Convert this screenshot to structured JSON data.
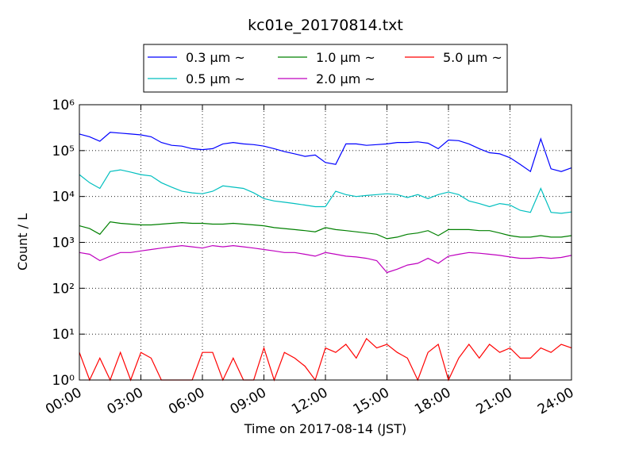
{
  "chart_data": {
    "type": "line",
    "title": "kc01e_20170814.txt",
    "x_label": "Time on 2017-08-14 (JST)",
    "y_label": "Count / L",
    "log_y": true,
    "grid": true,
    "x": [
      0,
      0.5,
      1,
      1.5,
      2,
      2.5,
      3,
      3.5,
      4,
      4.5,
      5,
      5.5,
      6,
      6.5,
      7,
      7.5,
      8,
      8.5,
      9,
      9.5,
      10,
      10.5,
      11,
      11.5,
      12,
      12.5,
      13,
      13.5,
      14,
      14.5,
      15,
      15.5,
      16,
      16.5,
      17,
      17.5,
      18,
      18.5,
      19,
      19.5,
      20,
      20.5,
      21,
      21.5,
      22,
      22.5,
      23,
      23.5,
      24
    ],
    "xlim": [
      0,
      24
    ],
    "xticks": [
      {
        "value": 0,
        "label": "00:00"
      },
      {
        "value": 3,
        "label": "03:00"
      },
      {
        "value": 6,
        "label": "06:00"
      },
      {
        "value": 9,
        "label": "09:00"
      },
      {
        "value": 12,
        "label": "12:00"
      },
      {
        "value": 15,
        "label": "15:00"
      },
      {
        "value": 18,
        "label": "18:00"
      },
      {
        "value": 21,
        "label": "21:00"
      },
      {
        "value": 24,
        "label": "24:00"
      }
    ],
    "ylim": [
      1,
      1000000
    ],
    "yticks": [
      {
        "value": 1,
        "label": "10⁰"
      },
      {
        "value": 10,
        "label": "10¹"
      },
      {
        "value": 100,
        "label": "10²"
      },
      {
        "value": 1000,
        "label": "10³"
      },
      {
        "value": 10000,
        "label": "10⁴"
      },
      {
        "value": 100000,
        "label": "10⁵"
      },
      {
        "value": 1000000,
        "label": "10⁶"
      }
    ],
    "series": [
      {
        "name": "0.3 μm ~",
        "color": "#0000ff",
        "values": [
          230000,
          200000,
          160000,
          250000,
          240000,
          230000,
          220000,
          200000,
          150000,
          130000,
          125000,
          110000,
          105000,
          110000,
          140000,
          150000,
          140000,
          135000,
          125000,
          110000,
          95000,
          85000,
          75000,
          80000,
          55000,
          50000,
          140000,
          140000,
          130000,
          135000,
          140000,
          150000,
          150000,
          155000,
          145000,
          110000,
          170000,
          165000,
          140000,
          110000,
          90000,
          85000,
          70000,
          50000,
          35000,
          180000,
          40000,
          35000,
          42000
        ]
      },
      {
        "name": "0.5 μm ~",
        "color": "#00bfbf",
        "values": [
          30000,
          20000,
          15000,
          35000,
          38000,
          34000,
          30000,
          28000,
          20000,
          16000,
          13000,
          12000,
          11500,
          13000,
          17000,
          16000,
          15000,
          12000,
          9000,
          8000,
          7500,
          7000,
          6500,
          6000,
          6000,
          13000,
          11000,
          10000,
          10500,
          11000,
          11500,
          11000,
          9500,
          11000,
          9000,
          11000,
          12500,
          11000,
          8000,
          7000,
          6000,
          7000,
          6500,
          5000,
          4500,
          15000,
          4500,
          4300,
          4600
        ]
      },
      {
        "name": "1.0 μm ~",
        "color": "#008000",
        "values": [
          2300,
          2000,
          1500,
          2800,
          2600,
          2500,
          2400,
          2400,
          2500,
          2600,
          2700,
          2600,
          2600,
          2500,
          2500,
          2600,
          2500,
          2400,
          2300,
          2100,
          2000,
          1900,
          1800,
          1700,
          2100,
          1900,
          1800,
          1700,
          1600,
          1500,
          1200,
          1300,
          1500,
          1600,
          1800,
          1400,
          1900,
          1900,
          1900,
          1800,
          1800,
          1600,
          1400,
          1300,
          1300,
          1400,
          1300,
          1300,
          1400
        ]
      },
      {
        "name": "2.0 μm ~",
        "color": "#bf00bf",
        "values": [
          600,
          550,
          400,
          500,
          600,
          600,
          650,
          700,
          750,
          800,
          850,
          800,
          750,
          850,
          800,
          850,
          800,
          750,
          700,
          650,
          600,
          600,
          550,
          500,
          600,
          550,
          500,
          480,
          450,
          400,
          220,
          260,
          320,
          350,
          450,
          350,
          500,
          550,
          600,
          580,
          550,
          520,
          480,
          450,
          450,
          470,
          450,
          470,
          520
        ]
      },
      {
        "name": "5.0 μm ~",
        "color": "#ff0000",
        "values": [
          4,
          1,
          3,
          1,
          4,
          1,
          4,
          3,
          1,
          1,
          1,
          1,
          4,
          4,
          1,
          3,
          1,
          1,
          5,
          1,
          4,
          3,
          2,
          1,
          5,
          4,
          6,
          3,
          8,
          5,
          6,
          4,
          3,
          1,
          4,
          6,
          1,
          3,
          6,
          3,
          6,
          4,
          5,
          3,
          3,
          5,
          4,
          6,
          5
        ]
      }
    ]
  }
}
